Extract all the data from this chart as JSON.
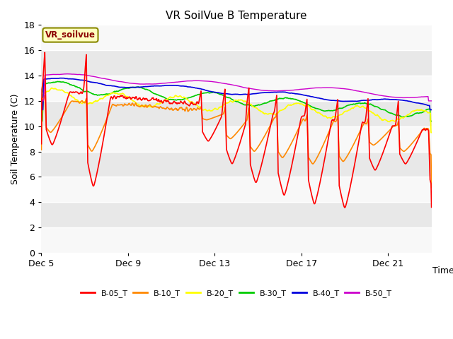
{
  "title": "VR SoilVue B Temperature",
  "xlabel": "Time",
  "ylabel": "Soil Temperature (C)",
  "ylim": [
    0,
    18
  ],
  "yticks": [
    0,
    2,
    4,
    6,
    8,
    10,
    12,
    14,
    16,
    18
  ],
  "x_tick_labels": [
    "Dec 5",
    "Dec 9",
    "Dec 13",
    "Dec 17",
    "Dec 21"
  ],
  "x_tick_positions": [
    0,
    4,
    8,
    12,
    16
  ],
  "x_max": 18,
  "annotation_text": "VR_soilvue",
  "legend_labels": [
    "B-05_T",
    "B-10_T",
    "B-20_T",
    "B-30_T",
    "B-40_T",
    "B-50_T"
  ],
  "colors": {
    "B-05_T": "#ff0000",
    "B-10_T": "#ff8800",
    "B-20_T": "#ffff00",
    "B-30_T": "#00cc00",
    "B-40_T": "#0000dd",
    "B-50_T": "#cc00cc"
  },
  "band_colors": [
    "#ffffff",
    "#e8e8e8"
  ],
  "plot_bg": "#f0f0f0",
  "n_points": 800
}
